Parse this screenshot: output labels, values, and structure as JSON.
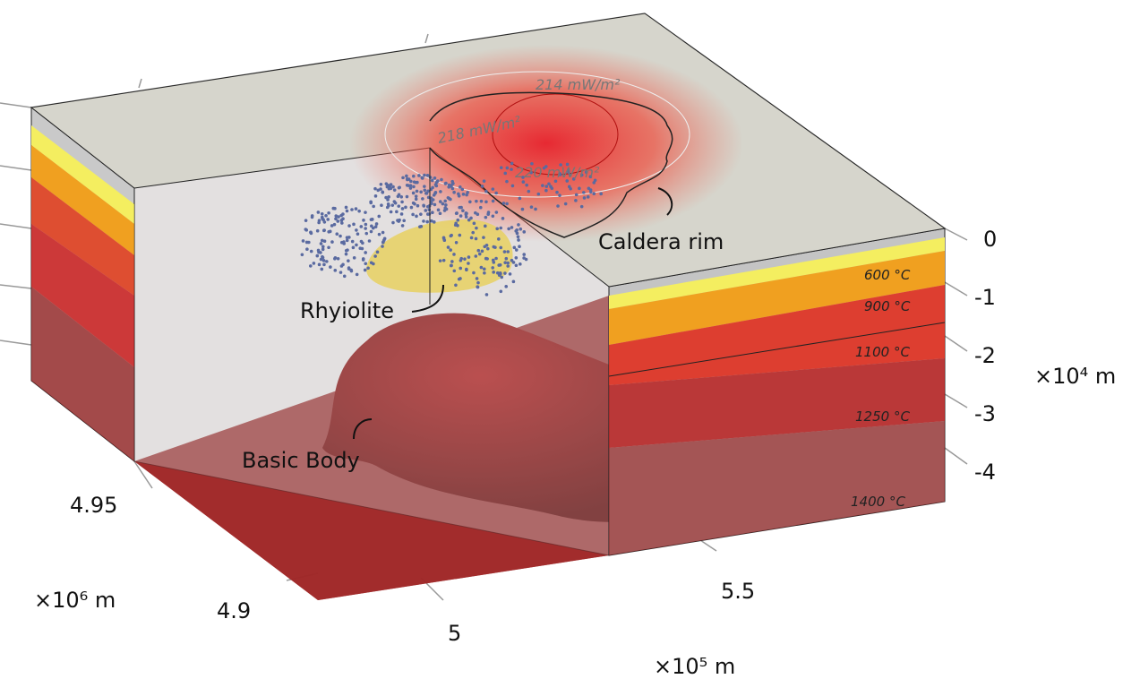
{
  "annotations": {
    "heat_flow": [
      "214 mW/m²",
      "218 mW/m²",
      "220 mW/m²"
    ],
    "caldera": "Caldera rim",
    "rhyolite": "Rhyiolite",
    "basic_body": "Basic Body"
  },
  "isotherms": [
    "600 °C",
    "900 °C",
    "1100 °C",
    "1250 °C",
    "1400 °C"
  ],
  "axes": {
    "z": {
      "ticks": [
        "0",
        "-1",
        "-2",
        "-3",
        "-4"
      ],
      "unit": "×10⁴ m"
    },
    "y": {
      "ticks": [
        "4.95",
        "4.9"
      ],
      "unit": "×10⁶ m"
    },
    "x": {
      "ticks": [
        "5",
        "5.5"
      ],
      "unit": "×10⁵ m"
    }
  }
}
